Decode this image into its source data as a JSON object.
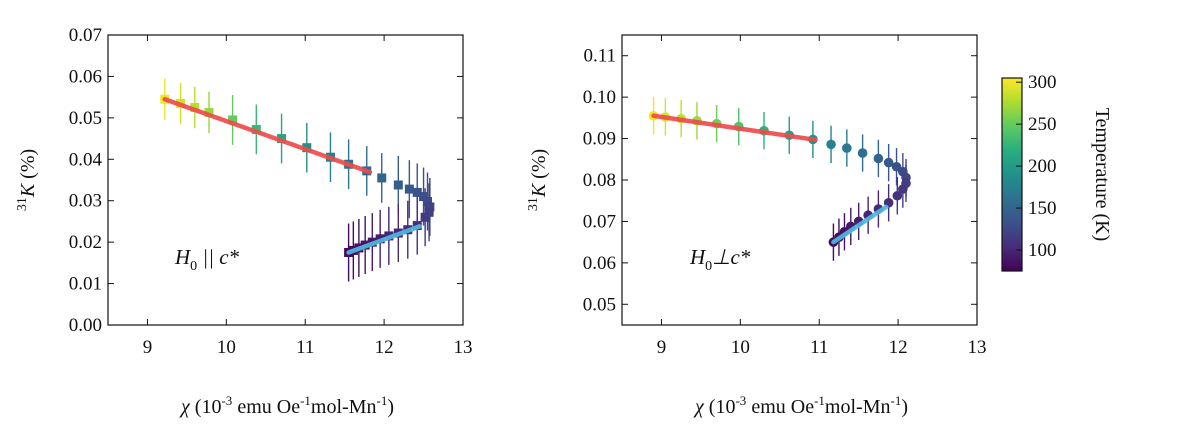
{
  "colors": {
    "fit_high_T": "#ef4b4b",
    "fit_low_T": "#4fb8e0",
    "axis": "#111111"
  },
  "colorbar": {
    "label": "Temperature (K)",
    "ticks": [
      "100",
      "150",
      "200",
      "250",
      "300"
    ],
    "range": [
      75,
      305
    ]
  },
  "chart_data": [
    {
      "type": "scatter",
      "id": "left",
      "annotation": {
        "h": "H",
        "sub": "0",
        "rest": " || c*"
      },
      "ylabel": {
        "sup": "31",
        "main": "K",
        "unit": " (%)"
      },
      "xlabel": {
        "sym": "χ",
        "a": " (10",
        "e1": "-3",
        "b": " emu Oe",
        "e2": "-1",
        "c": "mol-Mn",
        "e3": "-1",
        "d": ")"
      },
      "xlim": [
        8.5,
        13
      ],
      "ylim": [
        0.0,
        0.07
      ],
      "xticks": [
        "9",
        "10",
        "11",
        "12",
        "13"
      ],
      "yticks": [
        "0.00",
        "0.01",
        "0.02",
        "0.03",
        "0.04",
        "0.05",
        "0.06",
        "0.07"
      ],
      "marker": "square",
      "high_T": [
        {
          "x": 9.22,
          "y": 0.0545,
          "err": 0.005,
          "t": 300
        },
        {
          "x": 9.42,
          "y": 0.0535,
          "err": 0.005,
          "t": 290
        },
        {
          "x": 9.6,
          "y": 0.0525,
          "err": 0.005,
          "t": 280
        },
        {
          "x": 9.78,
          "y": 0.0513,
          "err": 0.005,
          "t": 270
        },
        {
          "x": 10.08,
          "y": 0.0495,
          "err": 0.006,
          "t": 250
        },
        {
          "x": 10.38,
          "y": 0.0472,
          "err": 0.006,
          "t": 230
        },
        {
          "x": 10.7,
          "y": 0.045,
          "err": 0.006,
          "t": 210
        },
        {
          "x": 11.02,
          "y": 0.0428,
          "err": 0.006,
          "t": 190
        },
        {
          "x": 11.32,
          "y": 0.0405,
          "err": 0.006,
          "t": 175
        },
        {
          "x": 11.55,
          "y": 0.0388,
          "err": 0.006,
          "t": 165
        },
        {
          "x": 11.78,
          "y": 0.0372,
          "err": 0.006,
          "t": 158
        },
        {
          "x": 11.97,
          "y": 0.0355,
          "err": 0.006,
          "t": 150
        },
        {
          "x": 12.18,
          "y": 0.0338,
          "err": 0.007,
          "t": 143
        },
        {
          "x": 12.32,
          "y": 0.0328,
          "err": 0.007,
          "t": 138
        },
        {
          "x": 12.42,
          "y": 0.032,
          "err": 0.007,
          "t": 134
        },
        {
          "x": 12.5,
          "y": 0.031,
          "err": 0.007,
          "t": 130
        },
        {
          "x": 12.55,
          "y": 0.0298,
          "err": 0.007,
          "t": 126
        },
        {
          "x": 12.58,
          "y": 0.0285,
          "err": 0.007,
          "t": 122
        },
        {
          "x": 12.57,
          "y": 0.0272,
          "err": 0.007,
          "t": 118
        },
        {
          "x": 12.52,
          "y": 0.026,
          "err": 0.007,
          "t": 114
        }
      ],
      "low_T": [
        {
          "x": 12.42,
          "y": 0.024,
          "err": 0.007,
          "t": 108
        },
        {
          "x": 12.3,
          "y": 0.023,
          "err": 0.007,
          "t": 104
        },
        {
          "x": 12.18,
          "y": 0.0222,
          "err": 0.007,
          "t": 100
        },
        {
          "x": 12.06,
          "y": 0.0215,
          "err": 0.007,
          "t": 97
        },
        {
          "x": 11.95,
          "y": 0.0208,
          "err": 0.007,
          "t": 94
        },
        {
          "x": 11.85,
          "y": 0.02,
          "err": 0.007,
          "t": 91
        },
        {
          "x": 11.76,
          "y": 0.0193,
          "err": 0.007,
          "t": 88
        },
        {
          "x": 11.68,
          "y": 0.0186,
          "err": 0.007,
          "t": 85
        },
        {
          "x": 11.61,
          "y": 0.018,
          "err": 0.007,
          "t": 82
        },
        {
          "x": 11.55,
          "y": 0.0175,
          "err": 0.007,
          "t": 80
        }
      ],
      "fit_high": {
        "x0": 9.22,
        "y0": 0.0545,
        "x1": 11.82,
        "y1": 0.0369
      },
      "fit_low": {
        "x0": 11.55,
        "y0": 0.0175,
        "x1": 12.45,
        "y1": 0.0238
      }
    },
    {
      "type": "scatter",
      "id": "right",
      "annotation": {
        "h": "H",
        "sub": "0",
        "rest": "⊥c*"
      },
      "ylabel": {
        "sup": "31",
        "main": "K",
        "unit": " (%)"
      },
      "xlabel": {
        "sym": "χ",
        "a": " (10",
        "e1": "-3",
        "b": " emu Oe",
        "e2": "-1",
        "c": "mol-Mn",
        "e3": "-1",
        "d": ")"
      },
      "xlim": [
        8.5,
        13
      ],
      "ylim": [
        0.045,
        0.115
      ],
      "xticks": [
        "9",
        "10",
        "11",
        "12",
        "13"
      ],
      "yticks": [
        "0.05",
        "0.06",
        "0.07",
        "0.08",
        "0.09",
        "0.10",
        "0.11"
      ],
      "marker": "circle",
      "high_T": [
        {
          "x": 8.9,
          "y": 0.0955,
          "err": 0.0045,
          "t": 300
        },
        {
          "x": 9.05,
          "y": 0.0952,
          "err": 0.0045,
          "t": 292
        },
        {
          "x": 9.25,
          "y": 0.0948,
          "err": 0.0045,
          "t": 282
        },
        {
          "x": 9.45,
          "y": 0.0943,
          "err": 0.0045,
          "t": 270
        },
        {
          "x": 9.7,
          "y": 0.0936,
          "err": 0.0045,
          "t": 255
        },
        {
          "x": 9.98,
          "y": 0.0929,
          "err": 0.0045,
          "t": 240
        },
        {
          "x": 10.3,
          "y": 0.0919,
          "err": 0.0045,
          "t": 222
        },
        {
          "x": 10.62,
          "y": 0.0908,
          "err": 0.0045,
          "t": 205
        },
        {
          "x": 10.92,
          "y": 0.0898,
          "err": 0.0045,
          "t": 190
        },
        {
          "x": 11.15,
          "y": 0.0886,
          "err": 0.0045,
          "t": 178
        },
        {
          "x": 11.35,
          "y": 0.0877,
          "err": 0.0045,
          "t": 168
        },
        {
          "x": 11.55,
          "y": 0.0865,
          "err": 0.0045,
          "t": 158
        },
        {
          "x": 11.75,
          "y": 0.0852,
          "err": 0.0045,
          "t": 148
        },
        {
          "x": 11.88,
          "y": 0.0842,
          "err": 0.0045,
          "t": 140
        },
        {
          "x": 11.98,
          "y": 0.0832,
          "err": 0.0045,
          "t": 133
        },
        {
          "x": 12.06,
          "y": 0.082,
          "err": 0.0045,
          "t": 127
        },
        {
          "x": 12.1,
          "y": 0.0806,
          "err": 0.0045,
          "t": 122
        },
        {
          "x": 12.1,
          "y": 0.0792,
          "err": 0.0045,
          "t": 117
        },
        {
          "x": 12.06,
          "y": 0.0778,
          "err": 0.0045,
          "t": 113
        },
        {
          "x": 11.99,
          "y": 0.0762,
          "err": 0.0045,
          "t": 109
        }
      ],
      "low_T": [
        {
          "x": 11.88,
          "y": 0.0745,
          "err": 0.0045,
          "t": 105
        },
        {
          "x": 11.75,
          "y": 0.073,
          "err": 0.0045,
          "t": 101
        },
        {
          "x": 11.62,
          "y": 0.0715,
          "err": 0.0045,
          "t": 97
        },
        {
          "x": 11.5,
          "y": 0.07,
          "err": 0.0045,
          "t": 93
        },
        {
          "x": 11.4,
          "y": 0.0688,
          "err": 0.0045,
          "t": 90
        },
        {
          "x": 11.32,
          "y": 0.0675,
          "err": 0.0045,
          "t": 86
        },
        {
          "x": 11.25,
          "y": 0.0662,
          "err": 0.0045,
          "t": 83
        },
        {
          "x": 11.18,
          "y": 0.065,
          "err": 0.0045,
          "t": 80
        }
      ],
      "fit_high": {
        "x0": 8.9,
        "y0": 0.0955,
        "x1": 10.95,
        "y1": 0.0897
      },
      "fit_low": {
        "x0": 11.18,
        "y0": 0.065,
        "x1": 11.85,
        "y1": 0.0735
      }
    }
  ]
}
